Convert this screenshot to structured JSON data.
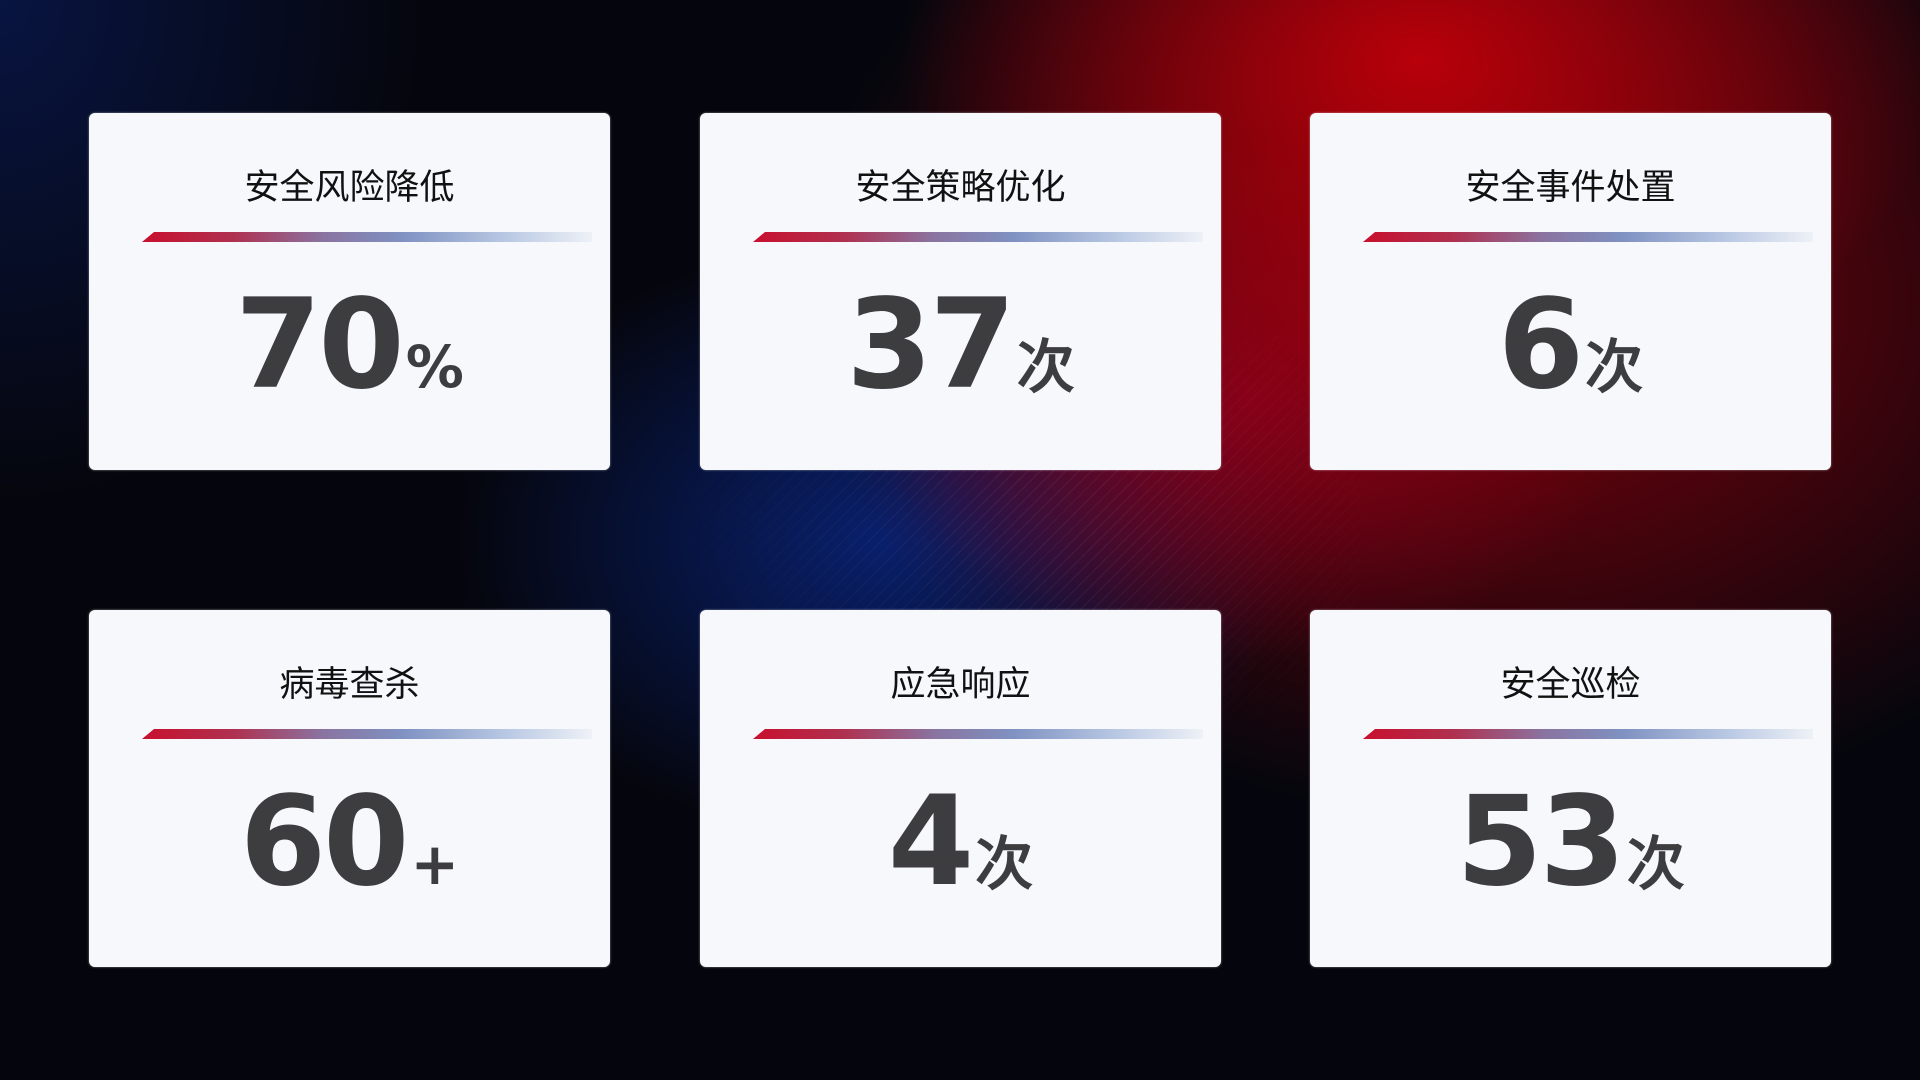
{
  "cards": [
    {
      "title": "安全风险降低",
      "value": "70",
      "unit": "%"
    },
    {
      "title": "安全策略优化",
      "value": "37",
      "unit": "次"
    },
    {
      "title": "安全事件处置",
      "value": "6",
      "unit": "次"
    },
    {
      "title": "病毒查杀",
      "value": "60",
      "unit": "+"
    },
    {
      "title": "应急响应",
      "value": "4",
      "unit": "次"
    },
    {
      "title": "安全巡检",
      "value": "53",
      "unit": "次"
    }
  ],
  "colors": {
    "accent_red": "#c8102e",
    "accent_blue": "#7f92c2",
    "card_bg": "#f6f8fc",
    "value_text": "#3d3d3f"
  }
}
